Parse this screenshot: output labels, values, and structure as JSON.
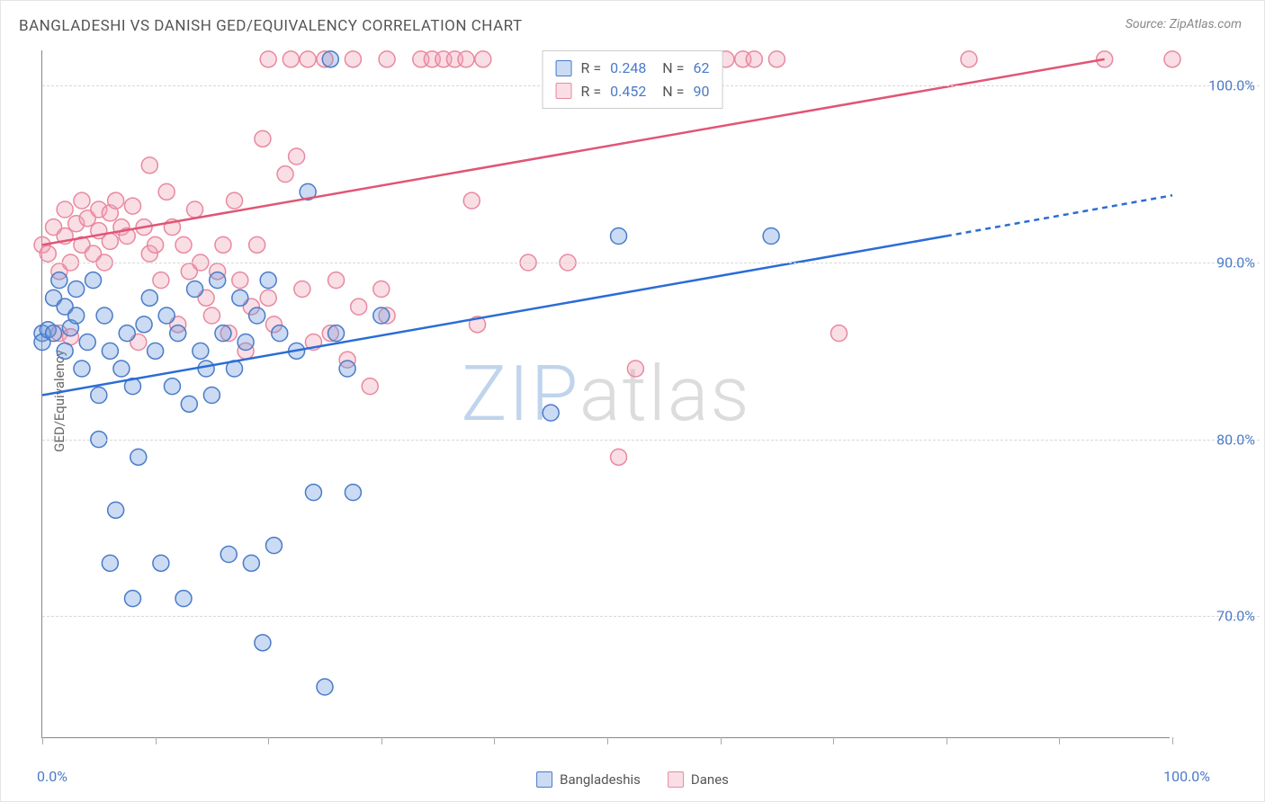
{
  "chart": {
    "title": "BANGLADESHI VS DANISH GED/EQUIVALENCY CORRELATION CHART",
    "source": "Source: ZipAtlas.com",
    "y_axis_label": "GED/Equivalency",
    "type": "scatter",
    "xlim": [
      0,
      100
    ],
    "ylim": [
      63,
      102
    ],
    "x_tick_positions": [
      0,
      10,
      20,
      30,
      40,
      50,
      60,
      70,
      80,
      90,
      100
    ],
    "y_ticks": [
      {
        "value": 70,
        "label": "70.0%"
      },
      {
        "value": 80,
        "label": "80.0%"
      },
      {
        "value": 90,
        "label": "90.0%"
      },
      {
        "value": 100,
        "label": "100.0%"
      }
    ],
    "x_axis_min_label": "0.0%",
    "x_axis_max_label": "100.0%",
    "background_color": "#ffffff",
    "grid_color": "#d8d8d8",
    "axis_color": "#888888",
    "tick_label_color": "#4a7bc8",
    "title_color": "#555555",
    "title_fontsize": 17,
    "marker_radius": 9,
    "marker_fill_opacity": 0.35,
    "marker_stroke_width": 1.5,
    "trendline_width": 2.5,
    "series": {
      "bangladeshis": {
        "label": "Bangladeshis",
        "color": "#6699dd",
        "stroke": "#4a7bc8",
        "trend_color": "#2b6cd6",
        "trend_start": {
          "x": 0,
          "y": 82.5
        },
        "trend_end_solid": {
          "x": 80,
          "y": 91.5
        },
        "trend_end_dashed": {
          "x": 100,
          "y": 93.8
        },
        "R": "0.248",
        "N": "62",
        "points": [
          {
            "x": 0,
            "y": 86
          },
          {
            "x": 0,
            "y": 85.5
          },
          {
            "x": 0.5,
            "y": 86.2
          },
          {
            "x": 1,
            "y": 88
          },
          {
            "x": 1,
            "y": 86
          },
          {
            "x": 1.5,
            "y": 89
          },
          {
            "x": 2,
            "y": 87.5
          },
          {
            "x": 2,
            "y": 85
          },
          {
            "x": 2.5,
            "y": 86.3
          },
          {
            "x": 3,
            "y": 88.5
          },
          {
            "x": 3,
            "y": 87
          },
          {
            "x": 3.5,
            "y": 84
          },
          {
            "x": 4,
            "y": 85.5
          },
          {
            "x": 4.5,
            "y": 89
          },
          {
            "x": 5,
            "y": 82.5
          },
          {
            "x": 5,
            "y": 80
          },
          {
            "x": 5.5,
            "y": 87
          },
          {
            "x": 6,
            "y": 85
          },
          {
            "x": 6,
            "y": 73
          },
          {
            "x": 6.5,
            "y": 76
          },
          {
            "x": 7,
            "y": 84
          },
          {
            "x": 7.5,
            "y": 86
          },
          {
            "x": 8,
            "y": 71
          },
          {
            "x": 8,
            "y": 83
          },
          {
            "x": 8.5,
            "y": 79
          },
          {
            "x": 9,
            "y": 86.5
          },
          {
            "x": 9.5,
            "y": 88
          },
          {
            "x": 10,
            "y": 85
          },
          {
            "x": 10.5,
            "y": 73
          },
          {
            "x": 11,
            "y": 87
          },
          {
            "x": 11.5,
            "y": 83
          },
          {
            "x": 12,
            "y": 86
          },
          {
            "x": 12.5,
            "y": 71
          },
          {
            "x": 13,
            "y": 82
          },
          {
            "x": 13.5,
            "y": 88.5
          },
          {
            "x": 14,
            "y": 85
          },
          {
            "x": 14.5,
            "y": 84
          },
          {
            "x": 15,
            "y": 82.5
          },
          {
            "x": 15.5,
            "y": 89
          },
          {
            "x": 16,
            "y": 86
          },
          {
            "x": 16.5,
            "y": 73.5
          },
          {
            "x": 17,
            "y": 84
          },
          {
            "x": 17.5,
            "y": 88
          },
          {
            "x": 18,
            "y": 85.5
          },
          {
            "x": 18.5,
            "y": 73
          },
          {
            "x": 19,
            "y": 87
          },
          {
            "x": 19.5,
            "y": 68.5
          },
          {
            "x": 20,
            "y": 89
          },
          {
            "x": 20.5,
            "y": 74
          },
          {
            "x": 21,
            "y": 86
          },
          {
            "x": 22.5,
            "y": 85
          },
          {
            "x": 23.5,
            "y": 94
          },
          {
            "x": 24,
            "y": 77
          },
          {
            "x": 25,
            "y": 66
          },
          {
            "x": 25.5,
            "y": 101.5
          },
          {
            "x": 26,
            "y": 86
          },
          {
            "x": 27,
            "y": 84
          },
          {
            "x": 27.5,
            "y": 77
          },
          {
            "x": 30,
            "y": 87
          },
          {
            "x": 45,
            "y": 81.5
          },
          {
            "x": 51,
            "y": 91.5
          },
          {
            "x": 64.5,
            "y": 91.5
          }
        ]
      },
      "danes": {
        "label": "Danes",
        "color": "#f0a0b5",
        "stroke": "#e8899f",
        "trend_color": "#e05575",
        "trend_start": {
          "x": 0,
          "y": 91
        },
        "trend_end": {
          "x": 94,
          "y": 101.5
        },
        "R": "0.452",
        "N": "90",
        "points": [
          {
            "x": 0,
            "y": 91
          },
          {
            "x": 0.5,
            "y": 90.5
          },
          {
            "x": 1,
            "y": 92
          },
          {
            "x": 1.5,
            "y": 89.5
          },
          {
            "x": 1.5,
            "y": 86
          },
          {
            "x": 2,
            "y": 91.5
          },
          {
            "x": 2,
            "y": 93
          },
          {
            "x": 2.5,
            "y": 90
          },
          {
            "x": 2.5,
            "y": 85.8
          },
          {
            "x": 3,
            "y": 92.2
          },
          {
            "x": 3.5,
            "y": 91
          },
          {
            "x": 3.5,
            "y": 93.5
          },
          {
            "x": 4,
            "y": 92.5
          },
          {
            "x": 4.5,
            "y": 90.5
          },
          {
            "x": 5,
            "y": 91.8
          },
          {
            "x": 5,
            "y": 93
          },
          {
            "x": 5.5,
            "y": 90
          },
          {
            "x": 6,
            "y": 92.8
          },
          {
            "x": 6,
            "y": 91.2
          },
          {
            "x": 6.5,
            "y": 93.5
          },
          {
            "x": 7,
            "y": 92
          },
          {
            "x": 7.5,
            "y": 91.5
          },
          {
            "x": 8,
            "y": 93.2
          },
          {
            "x": 8.5,
            "y": 85.5
          },
          {
            "x": 9,
            "y": 92
          },
          {
            "x": 9.5,
            "y": 90.5
          },
          {
            "x": 9.5,
            "y": 95.5
          },
          {
            "x": 10,
            "y": 91
          },
          {
            "x": 10.5,
            "y": 89
          },
          {
            "x": 11,
            "y": 94
          },
          {
            "x": 11.5,
            "y": 92
          },
          {
            "x": 12,
            "y": 86.5
          },
          {
            "x": 12.5,
            "y": 91
          },
          {
            "x": 13,
            "y": 89.5
          },
          {
            "x": 13.5,
            "y": 93
          },
          {
            "x": 14,
            "y": 90
          },
          {
            "x": 14.5,
            "y": 88
          },
          {
            "x": 15,
            "y": 87
          },
          {
            "x": 15.5,
            "y": 89.5
          },
          {
            "x": 16,
            "y": 91
          },
          {
            "x": 16.5,
            "y": 86
          },
          {
            "x": 17,
            "y": 93.5
          },
          {
            "x": 17.5,
            "y": 89
          },
          {
            "x": 18,
            "y": 85
          },
          {
            "x": 18.5,
            "y": 87.5
          },
          {
            "x": 19,
            "y": 91
          },
          {
            "x": 19.5,
            "y": 97
          },
          {
            "x": 20,
            "y": 88
          },
          {
            "x": 20,
            "y": 101.5
          },
          {
            "x": 20.5,
            "y": 86.5
          },
          {
            "x": 21.5,
            "y": 95
          },
          {
            "x": 22,
            "y": 101.5
          },
          {
            "x": 22.5,
            "y": 96
          },
          {
            "x": 23,
            "y": 88.5
          },
          {
            "x": 23.5,
            "y": 101.5
          },
          {
            "x": 24,
            "y": 85.5
          },
          {
            "x": 25,
            "y": 101.5
          },
          {
            "x": 25.5,
            "y": 86
          },
          {
            "x": 26,
            "y": 89
          },
          {
            "x": 27,
            "y": 84.5
          },
          {
            "x": 27.5,
            "y": 101.5
          },
          {
            "x": 28,
            "y": 87.5
          },
          {
            "x": 29,
            "y": 83
          },
          {
            "x": 30,
            "y": 88.5
          },
          {
            "x": 30.5,
            "y": 87
          },
          {
            "x": 30.5,
            "y": 101.5
          },
          {
            "x": 33.5,
            "y": 101.5
          },
          {
            "x": 34.5,
            "y": 101.5
          },
          {
            "x": 35.5,
            "y": 101.5
          },
          {
            "x": 36.5,
            "y": 101.5
          },
          {
            "x": 37.5,
            "y": 101.5
          },
          {
            "x": 38,
            "y": 93.5
          },
          {
            "x": 38.5,
            "y": 86.5
          },
          {
            "x": 39,
            "y": 101.5
          },
          {
            "x": 43,
            "y": 90
          },
          {
            "x": 46.5,
            "y": 90
          },
          {
            "x": 47,
            "y": 101.5
          },
          {
            "x": 48,
            "y": 101.5
          },
          {
            "x": 51,
            "y": 79
          },
          {
            "x": 52.5,
            "y": 84
          },
          {
            "x": 57.5,
            "y": 101.5
          },
          {
            "x": 59,
            "y": 101.5
          },
          {
            "x": 60.5,
            "y": 101.5
          },
          {
            "x": 62,
            "y": 101.5
          },
          {
            "x": 63,
            "y": 101.5
          },
          {
            "x": 65,
            "y": 101.5
          },
          {
            "x": 70.5,
            "y": 86
          },
          {
            "x": 82,
            "y": 101.5
          },
          {
            "x": 94,
            "y": 101.5
          },
          {
            "x": 100,
            "y": 101.5
          }
        ]
      }
    },
    "bottom_legend": [
      {
        "key": "bangladeshis"
      },
      {
        "key": "danes"
      }
    ],
    "watermark": {
      "part1": "ZIP",
      "part2": "atlas",
      "color1": "#c0d4ec",
      "color2": "#dcdcdc",
      "fontsize": 85
    }
  }
}
